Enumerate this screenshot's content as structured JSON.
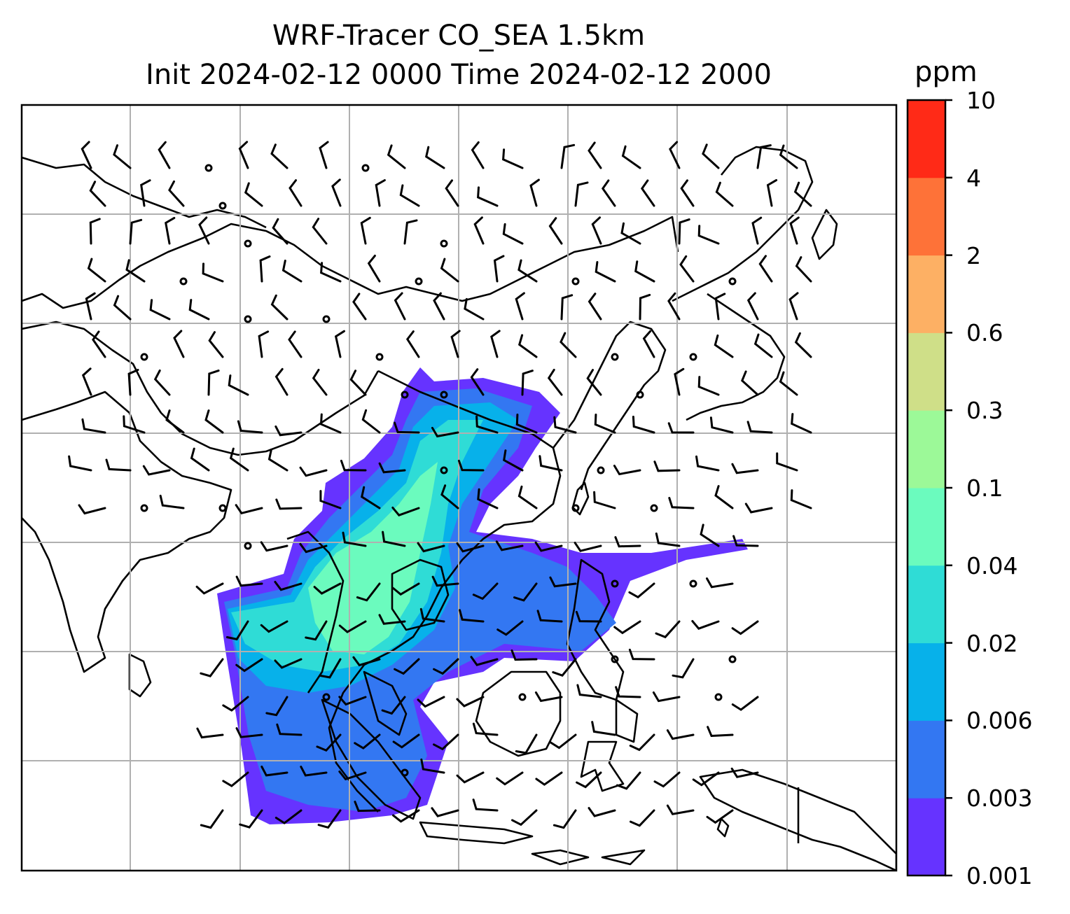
{
  "title": {
    "line1": "WRF-Tracer CO_SEA 1.5km",
    "line2": "Init 2024-02-12 0000 Time 2024-02-12 2000"
  },
  "colorbar": {
    "unit": "ppm",
    "levels": [
      "0.001",
      "0.003",
      "0.006",
      "0.02",
      "0.04",
      "0.1",
      "0.3",
      "0.6",
      "2",
      "4",
      "10"
    ],
    "colors": [
      "#6633ff",
      "#3377f2",
      "#07b1ea",
      "#2fdcd6",
      "#6bfbbe",
      "#9cf998",
      "#cfdf88",
      "#fdb064",
      "#fe7238",
      "#ff2a17"
    ]
  },
  "map": {
    "ocean_color": "#ffffff",
    "coast_color": "#000000",
    "grid_color": "#b0b0b0",
    "wind_barb_color": "#000000"
  }
}
